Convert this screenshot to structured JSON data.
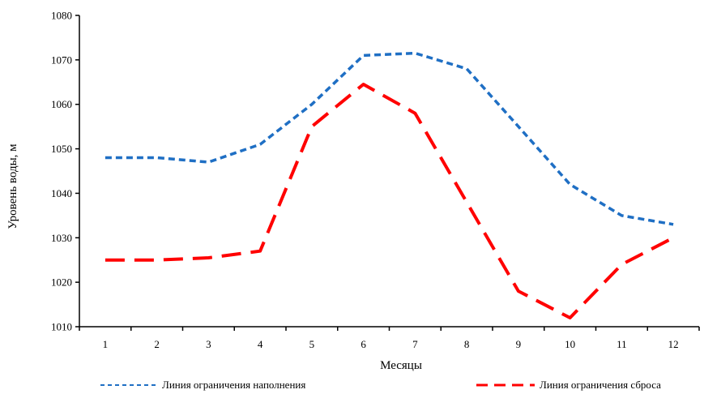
{
  "chart_data": {
    "type": "line",
    "title": "",
    "xlabel": "Месяцы",
    "ylabel": "Уровень воды, м",
    "x": [
      1,
      2,
      3,
      4,
      5,
      6,
      7,
      8,
      9,
      10,
      11,
      12
    ],
    "x_tick_labels": [
      "1",
      "2",
      "3",
      "4",
      "5",
      "6",
      "7",
      "8",
      "9",
      "10",
      "11",
      "12"
    ],
    "ylim": [
      1010,
      1080
    ],
    "y_ticks": [
      1010,
      1020,
      1030,
      1040,
      1050,
      1060,
      1070,
      1080
    ],
    "y_tick_labels": [
      "1010",
      "1020",
      "1030",
      "1040",
      "1050",
      "1060",
      "1070",
      "1080"
    ],
    "grid": false,
    "legend_position": "bottom",
    "series": [
      {
        "name": "Линия ограничения наполнения",
        "color": "#1f6fc4",
        "style": "short-dash",
        "values": [
          1048,
          1048,
          1047,
          1051,
          1060,
          1071,
          1071.5,
          1068,
          1055,
          1042,
          1035,
          1033
        ]
      },
      {
        "name": "Линия ограничения сброса",
        "color": "#ff0000",
        "style": "long-dash",
        "values": [
          1025,
          1025,
          1025.5,
          1027,
          1055,
          1064.5,
          1058,
          1038,
          1018,
          1012,
          1024,
          1030
        ]
      }
    ]
  }
}
